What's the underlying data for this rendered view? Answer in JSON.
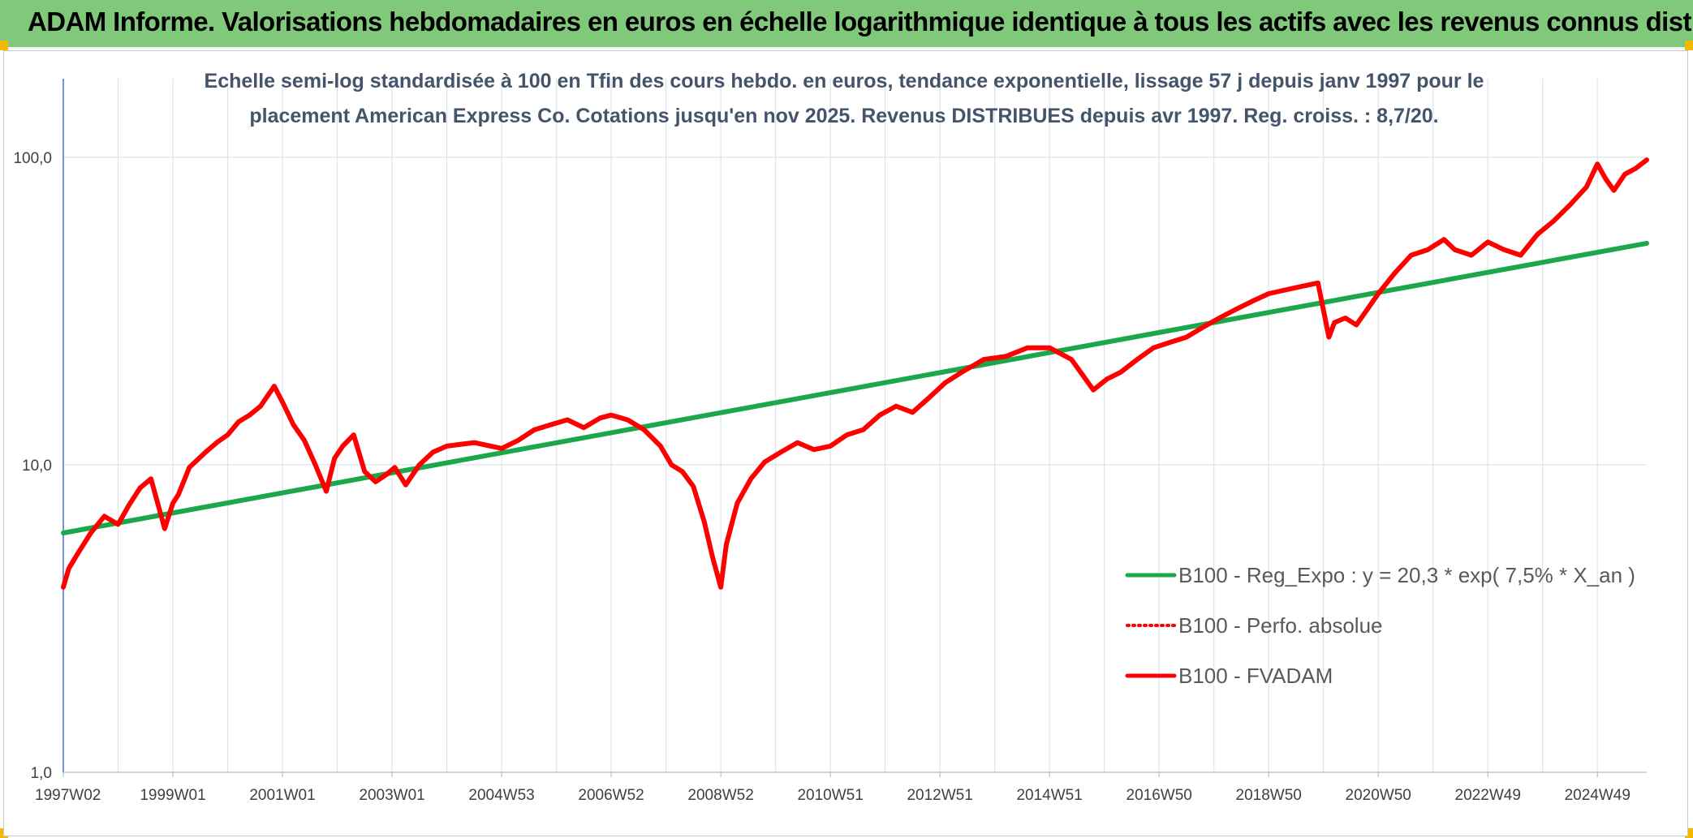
{
  "header": {
    "title": "ADAM Informe. Valorisations hebdomadaires en euros en échelle logarithmique identique à tous les actifs avec les revenus connus distribués"
  },
  "chart_data": {
    "type": "line",
    "title_lines": [
      "Echelle semi-log standardisée à 100 en Tfin des cours hebdo. en euros, tendance exponentielle, lissage 57 j depuis janv 1997 pour le",
      "placement American Express Co. Cotations jusqu'en nov 2025. Revenus DISTRIBUES depuis avr 1997. Reg. croiss. : 8,7/20."
    ],
    "y_scale": "log",
    "ylim": [
      1,
      180
    ],
    "y_ticks": [
      {
        "value": 1,
        "label": "1,0"
      },
      {
        "value": 10,
        "label": "10,0"
      },
      {
        "value": 100,
        "label": "100,0"
      }
    ],
    "xlim": [
      1997.0,
      2025.9
    ],
    "x_ticks": [
      {
        "value": 1997.0,
        "label": "1997W02"
      },
      {
        "value": 1999.0,
        "label": "1999W01"
      },
      {
        "value": 2001.0,
        "label": "2001W01"
      },
      {
        "value": 2003.0,
        "label": "2003W01"
      },
      {
        "value": 2005.0,
        "label": "2004W53"
      },
      {
        "value": 2007.0,
        "label": "2006W52"
      },
      {
        "value": 2009.0,
        "label": "2008W52"
      },
      {
        "value": 2011.0,
        "label": "2010W51"
      },
      {
        "value": 2013.0,
        "label": "2012W51"
      },
      {
        "value": 2015.0,
        "label": "2014W51"
      },
      {
        "value": 2017.0,
        "label": "2016W50"
      },
      {
        "value": 2019.0,
        "label": "2018W50"
      },
      {
        "value": 2021.0,
        "label": "2020W50"
      },
      {
        "value": 2023.0,
        "label": "2022W49"
      },
      {
        "value": 2025.0,
        "label": "2024W49"
      }
    ],
    "grid": true,
    "legend_position": "bottom-right",
    "series": [
      {
        "name": "B100 - Reg_Expo : y = 20,3 * exp( 7,5% *  X_an )",
        "color": "#1aa84a",
        "style": "solid",
        "x": [
          1997.0,
          2025.9
        ],
        "y": [
          6.0,
          52.5
        ]
      },
      {
        "name": "B100 - Perfo. absolue",
        "color": "#ff0000",
        "style": "dotted",
        "x": [],
        "y": []
      },
      {
        "name": "B100 - FVADAM",
        "color": "#ff0000",
        "style": "solid",
        "x": [
          1997.0,
          1997.1,
          1997.25,
          1997.5,
          1997.75,
          1998.0,
          1998.2,
          1998.4,
          1998.6,
          1998.85,
          1999.0,
          1999.1,
          1999.3,
          1999.6,
          1999.8,
          2000.0,
          2000.2,
          2000.4,
          2000.6,
          2000.85,
          2001.0,
          2001.2,
          2001.4,
          2001.6,
          2001.8,
          2001.95,
          2002.1,
          2002.3,
          2002.5,
          2002.7,
          2002.9,
          2003.05,
          2003.25,
          2003.5,
          2003.75,
          2004.0,
          2004.5,
          2005.0,
          2005.3,
          2005.6,
          2005.9,
          2006.2,
          2006.5,
          2006.8,
          2007.0,
          2007.3,
          2007.6,
          2007.9,
          2008.1,
          2008.3,
          2008.5,
          2008.7,
          2008.85,
          2009.0,
          2009.1,
          2009.3,
          2009.55,
          2009.8,
          2010.1,
          2010.4,
          2010.7,
          2011.0,
          2011.3,
          2011.6,
          2011.9,
          2012.2,
          2012.5,
          2012.8,
          2013.1,
          2013.4,
          2013.8,
          2014.2,
          2014.6,
          2015.0,
          2015.4,
          2015.8,
          2016.05,
          2016.3,
          2016.6,
          2016.9,
          2017.2,
          2017.5,
          2017.8,
          2018.1,
          2018.4,
          2018.7,
          2019.0,
          2019.3,
          2019.6,
          2019.9,
          2020.1,
          2020.2,
          2020.4,
          2020.6,
          2020.8,
          2021.0,
          2021.3,
          2021.6,
          2021.9,
          2022.2,
          2022.4,
          2022.7,
          2023.0,
          2023.3,
          2023.6,
          2023.9,
          2024.2,
          2024.5,
          2024.8,
          2025.0,
          2025.15,
          2025.3,
          2025.5,
          2025.7,
          2025.9
        ],
        "y": [
          4.0,
          4.6,
          5.1,
          6.0,
          6.8,
          6.4,
          7.4,
          8.4,
          9.0,
          6.2,
          7.5,
          8.0,
          9.8,
          11.0,
          11.8,
          12.5,
          13.8,
          14.5,
          15.5,
          18.0,
          16.0,
          13.5,
          12.0,
          10.0,
          8.2,
          10.5,
          11.5,
          12.5,
          9.5,
          8.8,
          9.3,
          9.8,
          8.6,
          10.0,
          11.0,
          11.5,
          11.8,
          11.3,
          12.0,
          13.0,
          13.5,
          14.0,
          13.2,
          14.2,
          14.5,
          14.0,
          13.0,
          11.5,
          10.0,
          9.5,
          8.5,
          6.5,
          5.0,
          4.0,
          5.5,
          7.5,
          9.0,
          10.2,
          11.0,
          11.8,
          11.2,
          11.5,
          12.5,
          13.0,
          14.5,
          15.5,
          14.8,
          16.5,
          18.5,
          20.0,
          22.0,
          22.5,
          24.0,
          24.0,
          22.0,
          17.5,
          19.0,
          20.0,
          22.0,
          24.0,
          25.0,
          26.0,
          28.0,
          30.0,
          32.0,
          34.0,
          36.0,
          37.0,
          38.0,
          39.0,
          26.0,
          29.0,
          30.0,
          28.5,
          32.0,
          36.0,
          42.0,
          48.0,
          50.0,
          54.0,
          50.0,
          48.0,
          53.0,
          50.0,
          48.0,
          56.0,
          62.0,
          70.0,
          80.0,
          95.0,
          85.0,
          78.0,
          88.0,
          92.0,
          98.0
        ]
      }
    ]
  }
}
